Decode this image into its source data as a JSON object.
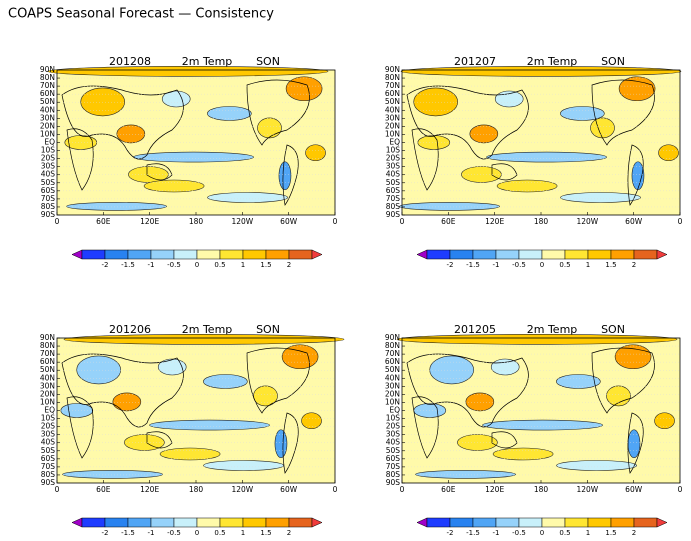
{
  "title": "COAPS Seasonal Forecast — Consistency",
  "panels": [
    {
      "date": "201208",
      "variable": "2m Temp",
      "season": "SON"
    },
    {
      "date": "201207",
      "variable": "2m Temp",
      "season": "SON"
    },
    {
      "date": "201206",
      "variable": "2m Temp",
      "season": "SON"
    },
    {
      "date": "201205",
      "variable": "2m Temp",
      "season": "SON"
    }
  ],
  "lat_labels": [
    "90N",
    "80N",
    "70N",
    "60N",
    "50N",
    "40N",
    "30N",
    "20N",
    "10N",
    "EQ",
    "10S",
    "20S",
    "30S",
    "40S",
    "50S",
    "60S",
    "70S",
    "80S",
    "90S"
  ],
  "lon_labels": [
    "0",
    "60E",
    "120E",
    "180",
    "120W",
    "60W",
    "0"
  ],
  "colorbar": {
    "ticks": [
      -2,
      -1.5,
      -1,
      -0.5,
      0,
      0.5,
      1,
      1.5,
      2
    ],
    "colors": [
      "#1e3cff",
      "#2882f0",
      "#50a5f5",
      "#96d2fa",
      "#c8f0fa",
      "#fffaaa",
      "#ffe632",
      "#ffc800",
      "#ffa000",
      "#e6641e"
    ],
    "under": "#a000c8",
    "over": "#f03c3c"
  }
}
